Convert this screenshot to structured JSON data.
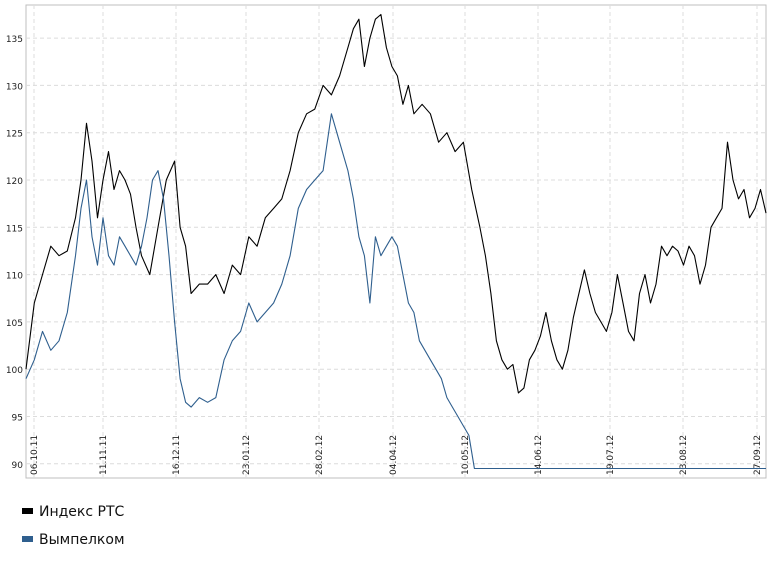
{
  "chart_data": {
    "type": "line",
    "title": "",
    "xlabel": "",
    "ylabel": "",
    "ylim": [
      88.5,
      138.5
    ],
    "yticks": [
      90,
      95,
      100,
      105,
      110,
      115,
      120,
      125,
      130,
      135
    ],
    "x_tick_labels": [
      "06.10.11",
      "11.11.11",
      "16.12.11",
      "23.01.12",
      "28.02.12",
      "04.04.12",
      "10.05.12",
      "14.06.12",
      "19.07.12",
      "23.08.12",
      "27.09.12"
    ],
    "grid": true,
    "legend_position": "bottom-left",
    "series": [
      {
        "name": "Индекс РТС",
        "color": "#000000",
        "values": [
          [
            0,
            100
          ],
          [
            3,
            107
          ],
          [
            6,
            110
          ],
          [
            9,
            113
          ],
          [
            12,
            112
          ],
          [
            15,
            112.5
          ],
          [
            18,
            116
          ],
          [
            20,
            120
          ],
          [
            22,
            126
          ],
          [
            24,
            122
          ],
          [
            26,
            116
          ],
          [
            28,
            120
          ],
          [
            30,
            123
          ],
          [
            32,
            119
          ],
          [
            34,
            121
          ],
          [
            36,
            120
          ],
          [
            38,
            118.5
          ],
          [
            40,
            115
          ],
          [
            42,
            112
          ],
          [
            45,
            110
          ],
          [
            48,
            115
          ],
          [
            51,
            120
          ],
          [
            54,
            122
          ],
          [
            56,
            115
          ],
          [
            58,
            113
          ],
          [
            60,
            108
          ],
          [
            63,
            109
          ],
          [
            66,
            109
          ],
          [
            69,
            110
          ],
          [
            72,
            108
          ],
          [
            75,
            111
          ],
          [
            78,
            110
          ],
          [
            81,
            114
          ],
          [
            84,
            113
          ],
          [
            87,
            116
          ],
          [
            90,
            117
          ],
          [
            93,
            118
          ],
          [
            96,
            121
          ],
          [
            99,
            125
          ],
          [
            102,
            127
          ],
          [
            105,
            127.5
          ],
          [
            108,
            130
          ],
          [
            111,
            129
          ],
          [
            114,
            131
          ],
          [
            117,
            134
          ],
          [
            119,
            136
          ],
          [
            121,
            137
          ],
          [
            123,
            132
          ],
          [
            125,
            135
          ],
          [
            127,
            137
          ],
          [
            129,
            137.5
          ],
          [
            131,
            134
          ],
          [
            133,
            132
          ],
          [
            135,
            131
          ],
          [
            137,
            128
          ],
          [
            139,
            130
          ],
          [
            141,
            127
          ],
          [
            144,
            128
          ],
          [
            147,
            127
          ],
          [
            150,
            124
          ],
          [
            153,
            125
          ],
          [
            156,
            123
          ],
          [
            159,
            124
          ],
          [
            162,
            119
          ],
          [
            165,
            115
          ],
          [
            167,
            112
          ],
          [
            169,
            108
          ],
          [
            171,
            103
          ],
          [
            173,
            101
          ],
          [
            175,
            100
          ],
          [
            177,
            100.5
          ],
          [
            179,
            97.5
          ],
          [
            181,
            98
          ],
          [
            183,
            101
          ],
          [
            185,
            102
          ],
          [
            187,
            103.5
          ],
          [
            189,
            106
          ],
          [
            191,
            103
          ],
          [
            193,
            101
          ],
          [
            195,
            100
          ],
          [
            197,
            102
          ],
          [
            199,
            105.5
          ],
          [
            201,
            108
          ],
          [
            203,
            110.5
          ],
          [
            205,
            108
          ],
          [
            207,
            106
          ],
          [
            209,
            105
          ],
          [
            211,
            104
          ],
          [
            213,
            106
          ],
          [
            215,
            110
          ],
          [
            217,
            107
          ],
          [
            219,
            104
          ],
          [
            221,
            103
          ],
          [
            223,
            108
          ],
          [
            225,
            110
          ],
          [
            227,
            107
          ],
          [
            229,
            109
          ],
          [
            231,
            113
          ],
          [
            233,
            112
          ],
          [
            235,
            113
          ],
          [
            237,
            112.5
          ],
          [
            239,
            111
          ],
          [
            241,
            113
          ],
          [
            243,
            112
          ],
          [
            245,
            109
          ],
          [
            247,
            111
          ],
          [
            249,
            115
          ],
          [
            251,
            116
          ],
          [
            253,
            117
          ],
          [
            255,
            124
          ],
          [
            257,
            120
          ],
          [
            259,
            118
          ],
          [
            261,
            119
          ],
          [
            263,
            116
          ],
          [
            265,
            117
          ],
          [
            267,
            119
          ],
          [
            269,
            116.5
          ]
        ]
      },
      {
        "name": "Вымпелком",
        "color": "#2f5f8e",
        "values": [
          [
            0,
            99
          ],
          [
            3,
            101
          ],
          [
            6,
            104
          ],
          [
            9,
            102
          ],
          [
            12,
            103
          ],
          [
            15,
            106
          ],
          [
            18,
            112
          ],
          [
            20,
            117
          ],
          [
            22,
            120
          ],
          [
            24,
            114
          ],
          [
            26,
            111
          ],
          [
            28,
            116
          ],
          [
            30,
            112
          ],
          [
            32,
            111
          ],
          [
            34,
            114
          ],
          [
            36,
            113
          ],
          [
            38,
            112
          ],
          [
            40,
            111
          ],
          [
            42,
            113
          ],
          [
            44,
            116
          ],
          [
            46,
            120
          ],
          [
            48,
            121
          ],
          [
            50,
            118
          ],
          [
            52,
            112
          ],
          [
            54,
            105
          ],
          [
            56,
            99
          ],
          [
            58,
            96.5
          ],
          [
            60,
            96
          ],
          [
            63,
            97
          ],
          [
            66,
            96.5
          ],
          [
            69,
            97
          ],
          [
            72,
            101
          ],
          [
            75,
            103
          ],
          [
            78,
            104
          ],
          [
            81,
            107
          ],
          [
            84,
            105
          ],
          [
            87,
            106
          ],
          [
            90,
            107
          ],
          [
            93,
            109
          ],
          [
            96,
            112
          ],
          [
            99,
            117
          ],
          [
            102,
            119
          ],
          [
            105,
            120
          ],
          [
            108,
            121
          ],
          [
            111,
            127
          ],
          [
            114,
            124
          ],
          [
            117,
            121
          ],
          [
            119,
            118
          ],
          [
            121,
            114
          ],
          [
            123,
            112
          ],
          [
            125,
            107
          ],
          [
            127,
            114
          ],
          [
            129,
            112
          ],
          [
            131,
            113
          ],
          [
            133,
            114
          ],
          [
            135,
            113
          ],
          [
            137,
            110
          ],
          [
            139,
            107
          ],
          [
            141,
            106
          ],
          [
            143,
            103
          ],
          [
            145,
            102
          ],
          [
            147,
            101
          ],
          [
            149,
            100
          ],
          [
            151,
            99
          ],
          [
            153,
            97
          ],
          [
            155,
            96
          ],
          [
            157,
            95
          ],
          [
            159,
            94
          ],
          [
            161,
            93
          ],
          [
            163,
            89.5
          ],
          [
            269,
            89.5
          ]
        ]
      }
    ],
    "x_domain": [
      0,
      269
    ]
  }
}
